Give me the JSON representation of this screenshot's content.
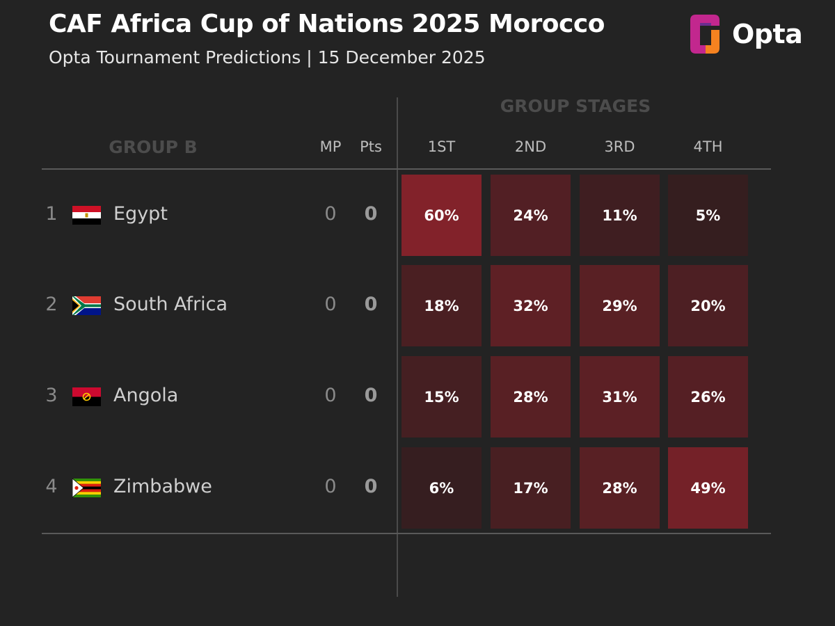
{
  "header": {
    "title": "CAF Africa Cup of Nations 2025 Morocco",
    "subtitle": "Opta Tournament Predictions | 15 December 2025",
    "logo_text": "Opta"
  },
  "table": {
    "group_label": "GROUP B",
    "stages_label": "GROUP STAGES",
    "col_mp": "MP",
    "col_pts": "Pts",
    "position_cols": [
      "1ST",
      "2ND",
      "3RD",
      "4TH"
    ]
  },
  "colors": {
    "background": "#232323",
    "cell_low": "#2a1d1e",
    "cell_high": "#82222a",
    "logo_magenta": "#c2278e",
    "logo_orange": "#f58220"
  },
  "chart_data": {
    "type": "heatmap",
    "title": "CAF Africa Cup of Nations 2025 Morocco",
    "subtitle": "Opta Tournament Predictions | 15 December 2025",
    "x": [
      "1ST",
      "2ND",
      "3RD",
      "4TH"
    ],
    "rows": [
      {
        "rank": "1",
        "team": "Egypt",
        "flag": "egypt-flag-icon",
        "mp": "0",
        "pts": "0",
        "values": [
          60,
          24,
          11,
          5
        ],
        "labels": [
          "60%",
          "24%",
          "11%",
          "5%"
        ]
      },
      {
        "rank": "2",
        "team": "South Africa",
        "flag": "south-africa-flag-icon",
        "mp": "0",
        "pts": "0",
        "values": [
          18,
          32,
          29,
          20
        ],
        "labels": [
          "18%",
          "32%",
          "29%",
          "20%"
        ]
      },
      {
        "rank": "3",
        "team": "Angola",
        "flag": "angola-flag-icon",
        "mp": "0",
        "pts": "0",
        "values": [
          15,
          28,
          31,
          26
        ],
        "labels": [
          "15%",
          "28%",
          "31%",
          "26%"
        ]
      },
      {
        "rank": "4",
        "team": "Zimbabwe",
        "flag": "zimbabwe-flag-icon",
        "mp": "0",
        "pts": "0",
        "values": [
          6,
          17,
          28,
          49
        ],
        "labels": [
          "6%",
          "17%",
          "28%",
          "49%"
        ]
      }
    ]
  }
}
